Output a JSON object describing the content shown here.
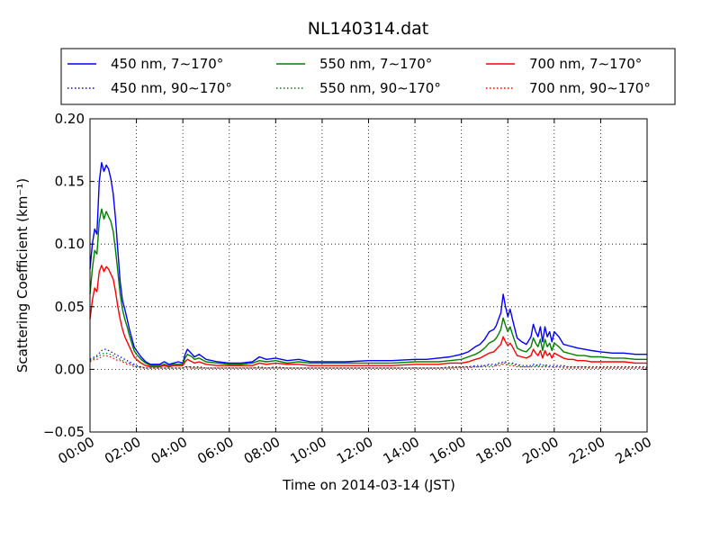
{
  "chart_data": {
    "type": "line",
    "title": "NL140314.dat",
    "xlabel": "Time on 2014-03-14 (JST)",
    "ylabel": "Scattering Coefficient (km⁻¹)",
    "xlim": [
      0,
      24
    ],
    "ylim": [
      -0.05,
      0.2
    ],
    "x_ticks": [
      0,
      2,
      4,
      6,
      8,
      10,
      12,
      14,
      16,
      18,
      20,
      22,
      24
    ],
    "x_tick_labels": [
      "00:00",
      "02:00",
      "04:00",
      "06:00",
      "08:00",
      "10:00",
      "12:00",
      "14:00",
      "16:00",
      "18:00",
      "20:00",
      "22:00",
      "24:00"
    ],
    "y_ticks": [
      -0.05,
      0.0,
      0.05,
      0.1,
      0.15,
      0.2
    ],
    "y_tick_labels": [
      "−0.05",
      "0.00",
      "0.05",
      "0.10",
      "0.15",
      "0.20"
    ],
    "grid": true,
    "legend_position": "top",
    "x": [
      0.0,
      0.1,
      0.2,
      0.3,
      0.4,
      0.5,
      0.6,
      0.7,
      0.8,
      0.9,
      1.0,
      1.1,
      1.2,
      1.3,
      1.4,
      1.5,
      1.6,
      1.7,
      1.8,
      1.9,
      2.0,
      2.2,
      2.4,
      2.6,
      2.8,
      3.0,
      3.2,
      3.4,
      3.6,
      3.8,
      4.0,
      4.1,
      4.2,
      4.3,
      4.4,
      4.5,
      4.7,
      5.0,
      5.5,
      6.0,
      6.5,
      7.0,
      7.3,
      7.6,
      8.0,
      8.5,
      9.0,
      9.5,
      10.0,
      11.0,
      12.0,
      13.0,
      14.0,
      14.5,
      15.0,
      15.5,
      16.0,
      16.3,
      16.6,
      16.8,
      17.0,
      17.2,
      17.4,
      17.5,
      17.6,
      17.7,
      17.8,
      17.9,
      18.0,
      18.1,
      18.2,
      18.4,
      18.6,
      18.8,
      19.0,
      19.1,
      19.2,
      19.3,
      19.4,
      19.5,
      19.6,
      19.7,
      19.8,
      19.9,
      20.0,
      20.2,
      20.4,
      20.6,
      20.8,
      21.0,
      21.3,
      21.6,
      22.0,
      22.5,
      23.0,
      23.5,
      24.0
    ],
    "series": [
      {
        "name": "450 nm, 7∼170°",
        "color": "#0000ff",
        "style": "solid",
        "values": [
          0.08,
          0.1,
          0.112,
          0.108,
          0.15,
          0.165,
          0.158,
          0.163,
          0.16,
          0.152,
          0.14,
          0.12,
          0.095,
          0.07,
          0.055,
          0.048,
          0.04,
          0.032,
          0.025,
          0.018,
          0.015,
          0.01,
          0.006,
          0.004,
          0.004,
          0.004,
          0.006,
          0.004,
          0.005,
          0.006,
          0.005,
          0.012,
          0.016,
          0.014,
          0.012,
          0.01,
          0.012,
          0.008,
          0.006,
          0.005,
          0.005,
          0.006,
          0.01,
          0.008,
          0.009,
          0.007,
          0.008,
          0.006,
          0.006,
          0.006,
          0.007,
          0.007,
          0.008,
          0.008,
          0.009,
          0.01,
          0.012,
          0.014,
          0.018,
          0.02,
          0.024,
          0.03,
          0.032,
          0.035,
          0.04,
          0.045,
          0.06,
          0.05,
          0.042,
          0.048,
          0.04,
          0.025,
          0.022,
          0.02,
          0.026,
          0.036,
          0.03,
          0.026,
          0.034,
          0.022,
          0.034,
          0.026,
          0.03,
          0.022,
          0.03,
          0.026,
          0.02,
          0.019,
          0.018,
          0.017,
          0.016,
          0.015,
          0.014,
          0.013,
          0.013,
          0.012,
          0.012
        ]
      },
      {
        "name": "550 nm, 7∼170°",
        "color": "#008000",
        "style": "solid",
        "values": [
          0.06,
          0.08,
          0.095,
          0.092,
          0.118,
          0.128,
          0.12,
          0.126,
          0.122,
          0.118,
          0.11,
          0.095,
          0.078,
          0.06,
          0.048,
          0.04,
          0.034,
          0.027,
          0.021,
          0.015,
          0.012,
          0.008,
          0.005,
          0.003,
          0.003,
          0.003,
          0.004,
          0.003,
          0.004,
          0.004,
          0.004,
          0.009,
          0.012,
          0.011,
          0.01,
          0.008,
          0.009,
          0.006,
          0.005,
          0.004,
          0.004,
          0.005,
          0.007,
          0.006,
          0.007,
          0.005,
          0.006,
          0.005,
          0.005,
          0.005,
          0.005,
          0.005,
          0.006,
          0.006,
          0.006,
          0.007,
          0.008,
          0.01,
          0.012,
          0.014,
          0.017,
          0.021,
          0.023,
          0.025,
          0.028,
          0.032,
          0.041,
          0.035,
          0.03,
          0.034,
          0.028,
          0.017,
          0.015,
          0.014,
          0.018,
          0.025,
          0.021,
          0.018,
          0.024,
          0.015,
          0.024,
          0.018,
          0.021,
          0.015,
          0.021,
          0.018,
          0.014,
          0.013,
          0.012,
          0.011,
          0.011,
          0.01,
          0.01,
          0.009,
          0.009,
          0.008,
          0.008
        ]
      },
      {
        "name": "700 nm, 7∼170°",
        "color": "#ff0000",
        "style": "solid",
        "values": [
          0.04,
          0.055,
          0.065,
          0.062,
          0.078,
          0.083,
          0.078,
          0.082,
          0.08,
          0.076,
          0.072,
          0.062,
          0.05,
          0.04,
          0.032,
          0.026,
          0.022,
          0.018,
          0.014,
          0.01,
          0.008,
          0.005,
          0.003,
          0.002,
          0.002,
          0.002,
          0.003,
          0.002,
          0.003,
          0.003,
          0.003,
          0.006,
          0.008,
          0.007,
          0.006,
          0.005,
          0.006,
          0.004,
          0.003,
          0.003,
          0.003,
          0.003,
          0.005,
          0.004,
          0.005,
          0.004,
          0.004,
          0.003,
          0.003,
          0.003,
          0.003,
          0.003,
          0.004,
          0.004,
          0.004,
          0.005,
          0.005,
          0.006,
          0.008,
          0.009,
          0.011,
          0.013,
          0.014,
          0.016,
          0.018,
          0.02,
          0.026,
          0.022,
          0.019,
          0.021,
          0.018,
          0.011,
          0.01,
          0.009,
          0.011,
          0.016,
          0.013,
          0.011,
          0.015,
          0.009,
          0.015,
          0.011,
          0.013,
          0.009,
          0.013,
          0.011,
          0.009,
          0.008,
          0.008,
          0.007,
          0.007,
          0.006,
          0.006,
          0.006,
          0.006,
          0.005,
          0.005
        ]
      },
      {
        "name": "450 nm, 90∼170°",
        "color": "#0000ff",
        "style": "dotted",
        "values": [
          0.008,
          0.009,
          0.01,
          0.011,
          0.013,
          0.015,
          0.016,
          0.016,
          0.015,
          0.014,
          0.013,
          0.012,
          0.011,
          0.01,
          0.009,
          0.008,
          0.007,
          0.006,
          0.005,
          0.004,
          0.003,
          0.002,
          0.001,
          0.001,
          0.001,
          0.001,
          0.001,
          0.001,
          0.001,
          0.001,
          0.001,
          0.002,
          0.002,
          0.002,
          0.002,
          0.002,
          0.002,
          0.001,
          0.001,
          0.001,
          0.001,
          0.001,
          0.002,
          0.001,
          0.002,
          0.001,
          0.001,
          0.001,
          0.001,
          0.001,
          0.001,
          0.001,
          0.001,
          0.001,
          0.001,
          0.002,
          0.002,
          0.002,
          0.003,
          0.003,
          0.003,
          0.004,
          0.004,
          0.004,
          0.005,
          0.005,
          0.006,
          0.006,
          0.005,
          0.005,
          0.005,
          0.004,
          0.003,
          0.003,
          0.003,
          0.004,
          0.004,
          0.003,
          0.004,
          0.003,
          0.004,
          0.003,
          0.003,
          0.003,
          0.003,
          0.003,
          0.003,
          0.002,
          0.002,
          0.002,
          0.002,
          0.002,
          0.002,
          0.002,
          0.002,
          0.002,
          0.002
        ]
      },
      {
        "name": "550 nm, 90∼170°",
        "color": "#008000",
        "style": "dotted",
        "values": [
          0.007,
          0.008,
          0.009,
          0.01,
          0.011,
          0.012,
          0.013,
          0.013,
          0.012,
          0.012,
          0.011,
          0.01,
          0.009,
          0.008,
          0.007,
          0.006,
          0.005,
          0.005,
          0.004,
          0.003,
          0.002,
          0.002,
          0.001,
          0.001,
          0.001,
          0.001,
          0.001,
          0.001,
          0.001,
          0.001,
          0.001,
          0.002,
          0.002,
          0.002,
          0.001,
          0.001,
          0.001,
          0.001,
          0.001,
          0.001,
          0.001,
          0.001,
          0.001,
          0.001,
          0.001,
          0.001,
          0.001,
          0.001,
          0.001,
          0.001,
          0.001,
          0.001,
          0.001,
          0.001,
          0.001,
          0.001,
          0.002,
          0.002,
          0.002,
          0.002,
          0.003,
          0.003,
          0.003,
          0.003,
          0.004,
          0.004,
          0.005,
          0.005,
          0.004,
          0.004,
          0.004,
          0.003,
          0.002,
          0.002,
          0.002,
          0.003,
          0.003,
          0.002,
          0.003,
          0.002,
          0.003,
          0.002,
          0.002,
          0.002,
          0.002,
          0.002,
          0.002,
          0.002,
          0.002,
          0.002,
          0.002,
          0.001,
          0.001,
          0.001,
          0.001,
          0.001,
          0.001
        ]
      },
      {
        "name": "700 nm, 90∼170°",
        "color": "#ff0000",
        "style": "dotted",
        "values": [
          0.006,
          0.007,
          0.008,
          0.008,
          0.009,
          0.01,
          0.011,
          0.011,
          0.01,
          0.01,
          0.009,
          0.008,
          0.007,
          0.007,
          0.006,
          0.005,
          0.004,
          0.004,
          0.003,
          0.002,
          0.002,
          0.001,
          0.001,
          0.001,
          0.001,
          0.001,
          0.001,
          0.001,
          0.001,
          0.001,
          0.001,
          0.001,
          0.001,
          0.001,
          0.001,
          0.001,
          0.001,
          0.001,
          0.001,
          0.001,
          0.001,
          0.001,
          0.001,
          0.001,
          0.001,
          0.001,
          0.001,
          0.001,
          0.001,
          0.001,
          0.001,
          0.001,
          0.001,
          0.001,
          0.001,
          0.001,
          0.001,
          0.001,
          0.002,
          0.002,
          0.002,
          0.002,
          0.002,
          0.003,
          0.003,
          0.003,
          0.004,
          0.004,
          0.003,
          0.003,
          0.003,
          0.002,
          0.002,
          0.002,
          0.002,
          0.002,
          0.002,
          0.002,
          0.002,
          0.002,
          0.002,
          0.002,
          0.002,
          0.002,
          0.002,
          0.002,
          0.001,
          0.001,
          0.001,
          0.001,
          0.001,
          0.001,
          0.001,
          0.001,
          0.001,
          0.001,
          0.001
        ]
      }
    ]
  }
}
